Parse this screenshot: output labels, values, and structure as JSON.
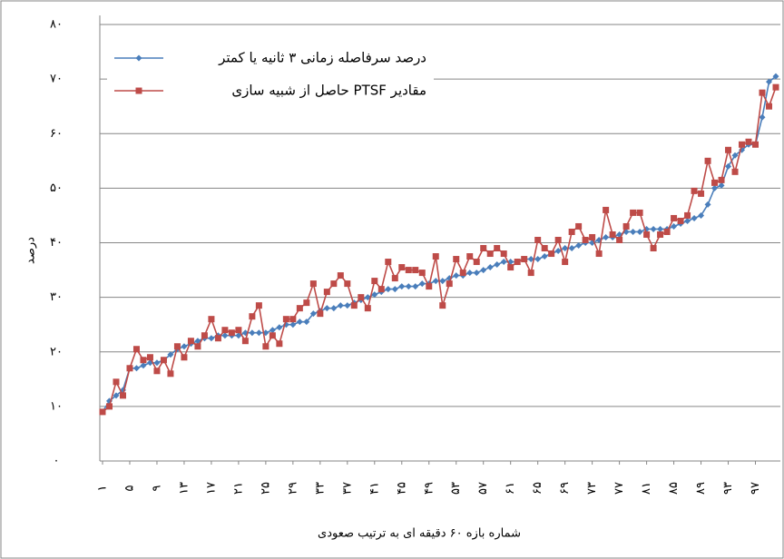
{
  "chart_data": {
    "type": "line",
    "x_label": "شماره بازه ۶۰ دقیقه ای به ترتیب صعودی",
    "y_label": "درصد",
    "x": [
      1,
      2,
      3,
      4,
      5,
      6,
      7,
      8,
      9,
      10,
      11,
      12,
      13,
      14,
      15,
      16,
      17,
      18,
      19,
      20,
      21,
      22,
      23,
      24,
      25,
      26,
      27,
      28,
      29,
      30,
      31,
      32,
      33,
      34,
      35,
      36,
      37,
      38,
      39,
      40,
      41,
      42,
      43,
      44,
      45,
      46,
      47,
      48,
      49,
      50,
      51,
      52,
      53,
      54,
      55,
      56,
      57,
      58,
      59,
      60,
      61,
      62,
      63,
      64,
      65,
      66,
      67,
      68,
      69,
      70,
      71,
      72,
      73,
      74,
      75,
      76,
      77,
      78,
      79,
      80,
      81,
      82,
      83,
      84,
      85,
      86,
      87,
      88,
      89,
      90,
      91,
      92,
      93,
      94,
      95,
      96,
      97,
      98,
      99,
      100
    ],
    "xticks": [
      {
        "value": 1,
        "label": "۱"
      },
      {
        "value": 5,
        "label": "۵"
      },
      {
        "value": 9,
        "label": "۹"
      },
      {
        "value": 13,
        "label": "۱۳"
      },
      {
        "value": 17,
        "label": "۱۷"
      },
      {
        "value": 21,
        "label": "۲۱"
      },
      {
        "value": 25,
        "label": "۲۵"
      },
      {
        "value": 29,
        "label": "۲۹"
      },
      {
        "value": 33,
        "label": "۳۳"
      },
      {
        "value": 37,
        "label": "۳۷"
      },
      {
        "value": 41,
        "label": "۴۱"
      },
      {
        "value": 45,
        "label": "۴۵"
      },
      {
        "value": 49,
        "label": "۴۹"
      },
      {
        "value": 53,
        "label": "۵۳"
      },
      {
        "value": 57,
        "label": "۵۷"
      },
      {
        "value": 61,
        "label": "۶۱"
      },
      {
        "value": 65,
        "label": "۶۵"
      },
      {
        "value": 69,
        "label": "۶۹"
      },
      {
        "value": 73,
        "label": "۷۳"
      },
      {
        "value": 77,
        "label": "۷۷"
      },
      {
        "value": 81,
        "label": "۸۱"
      },
      {
        "value": 85,
        "label": "۸۵"
      },
      {
        "value": 89,
        "label": "۸۹"
      },
      {
        "value": 93,
        "label": "۹۳"
      },
      {
        "value": 97,
        "label": "۹۷"
      }
    ],
    "ylim": [
      0,
      80
    ],
    "yticks": [
      {
        "value": 0,
        "label": "۰"
      },
      {
        "value": 10,
        "label": "۱۰"
      },
      {
        "value": 20,
        "label": "۲۰"
      },
      {
        "value": 30,
        "label": "۳۰"
      },
      {
        "value": 40,
        "label": "۴۰"
      },
      {
        "value": 50,
        "label": "۵۰"
      },
      {
        "value": 60,
        "label": "۶۰"
      },
      {
        "value": 70,
        "label": "۷۰"
      },
      {
        "value": 80,
        "label": "۸۰"
      }
    ],
    "grid": true,
    "series": [
      {
        "name": "درصد سرفاصله زمانی ۳ ثانیه یا کمتر",
        "color": "#4a7ebb",
        "marker": "diamond",
        "values": [
          9,
          11,
          12,
          13,
          17,
          17,
          17.5,
          18,
          18,
          18.5,
          19.5,
          20.5,
          21,
          21.5,
          22,
          22.5,
          22.5,
          23,
          23,
          23,
          23,
          23.5,
          23.5,
          23.5,
          23.5,
          24,
          24.5,
          25,
          25,
          25.5,
          25.5,
          27,
          27.5,
          28,
          28,
          28.5,
          28.5,
          29,
          29.5,
          30,
          30.5,
          31,
          31.5,
          31.5,
          32,
          32,
          32,
          32.5,
          32.5,
          33,
          33,
          33.5,
          34,
          34,
          34.5,
          34.5,
          35,
          35.5,
          36,
          36.5,
          36.5,
          36.5,
          37,
          37,
          37,
          37.5,
          38,
          38.5,
          39,
          39,
          39.5,
          40,
          40,
          40.5,
          41,
          41,
          41.5,
          42,
          42,
          42,
          42.5,
          42.5,
          42.5,
          42.5,
          43,
          43.5,
          44,
          44.5,
          45,
          47,
          50,
          50.5,
          54,
          56,
          57,
          58,
          58,
          63,
          69.5,
          70.5
        ]
      },
      {
        "name": "مقادیر PTSF حاصل از شبیه سازی",
        "color": "#be4b48",
        "marker": "square",
        "values": [
          9,
          10,
          14.5,
          12,
          17,
          20.5,
          18.5,
          19,
          16.5,
          18.5,
          16,
          21,
          19,
          22,
          21,
          23,
          26,
          22.5,
          24,
          23.5,
          24,
          22,
          26.5,
          28.5,
          21,
          23,
          21.5,
          26,
          26,
          28,
          29,
          32.5,
          27,
          31,
          32.5,
          34,
          32.5,
          28.5,
          30,
          28,
          33,
          31.5,
          36.5,
          33.5,
          35.5,
          35,
          35,
          34.5,
          32,
          37.5,
          28.5,
          32.5,
          37,
          34.5,
          37.5,
          36.5,
          39,
          38,
          39,
          38,
          35.5,
          36.5,
          37,
          34.5,
          40.5,
          39,
          38,
          40.5,
          36.5,
          42,
          43,
          40.5,
          41,
          38,
          46,
          41.5,
          40.5,
          43,
          45.5,
          45.5,
          41.5,
          39,
          41.5,
          42,
          44.5,
          44,
          45,
          49.5,
          49,
          55,
          51,
          51.5,
          57,
          53,
          58,
          58.5,
          58,
          67.5,
          65,
          68.5
        ]
      }
    ]
  }
}
